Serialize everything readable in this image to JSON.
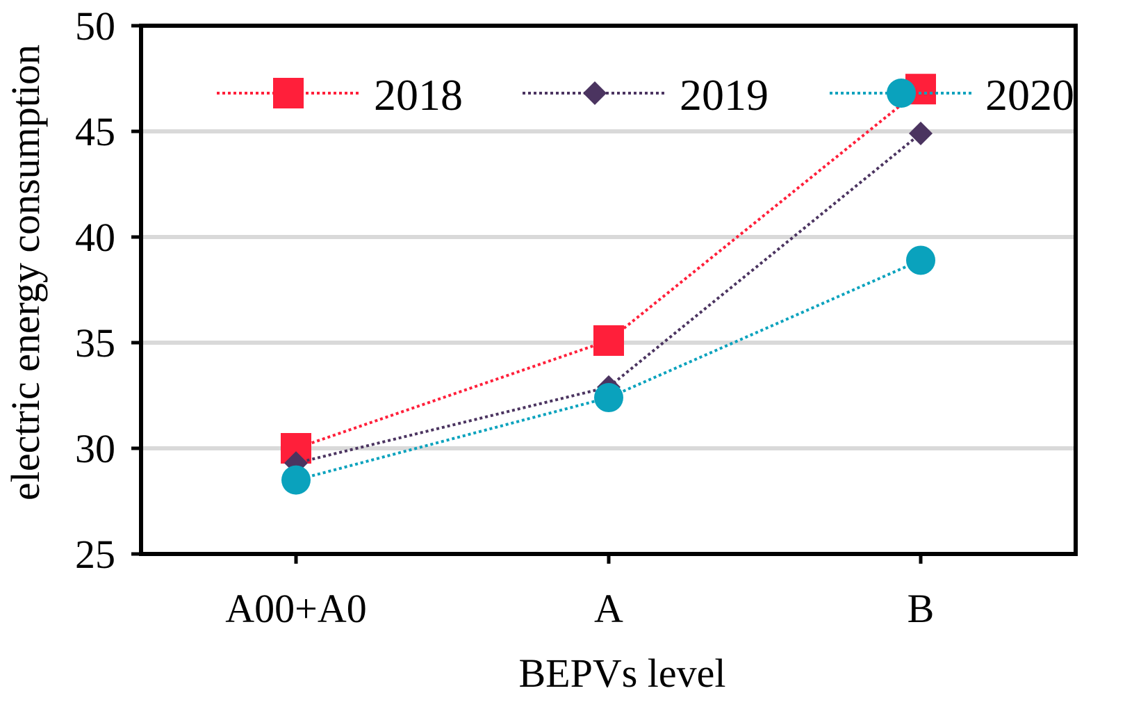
{
  "chart_data": {
    "type": "line",
    "title": "",
    "xlabel": "BEPVs level",
    "ylabel": "electric energy consumption",
    "categories": [
      "A00+A0",
      "A",
      "B"
    ],
    "ylim": [
      25,
      50
    ],
    "yticks": [
      25,
      30,
      35,
      40,
      45,
      50
    ],
    "grid": true,
    "legend_position": "top",
    "series": [
      {
        "name": "2018",
        "values": [
          30.0,
          35.1,
          47.0
        ],
        "color": "#ff1f3a",
        "marker": "square"
      },
      {
        "name": "2019",
        "values": [
          29.3,
          32.9,
          44.9
        ],
        "color": "#4b3460",
        "marker": "diamond"
      },
      {
        "name": "2020",
        "values": [
          28.5,
          32.4,
          38.9
        ],
        "color": "#0aa2bd",
        "marker": "circle"
      }
    ]
  }
}
